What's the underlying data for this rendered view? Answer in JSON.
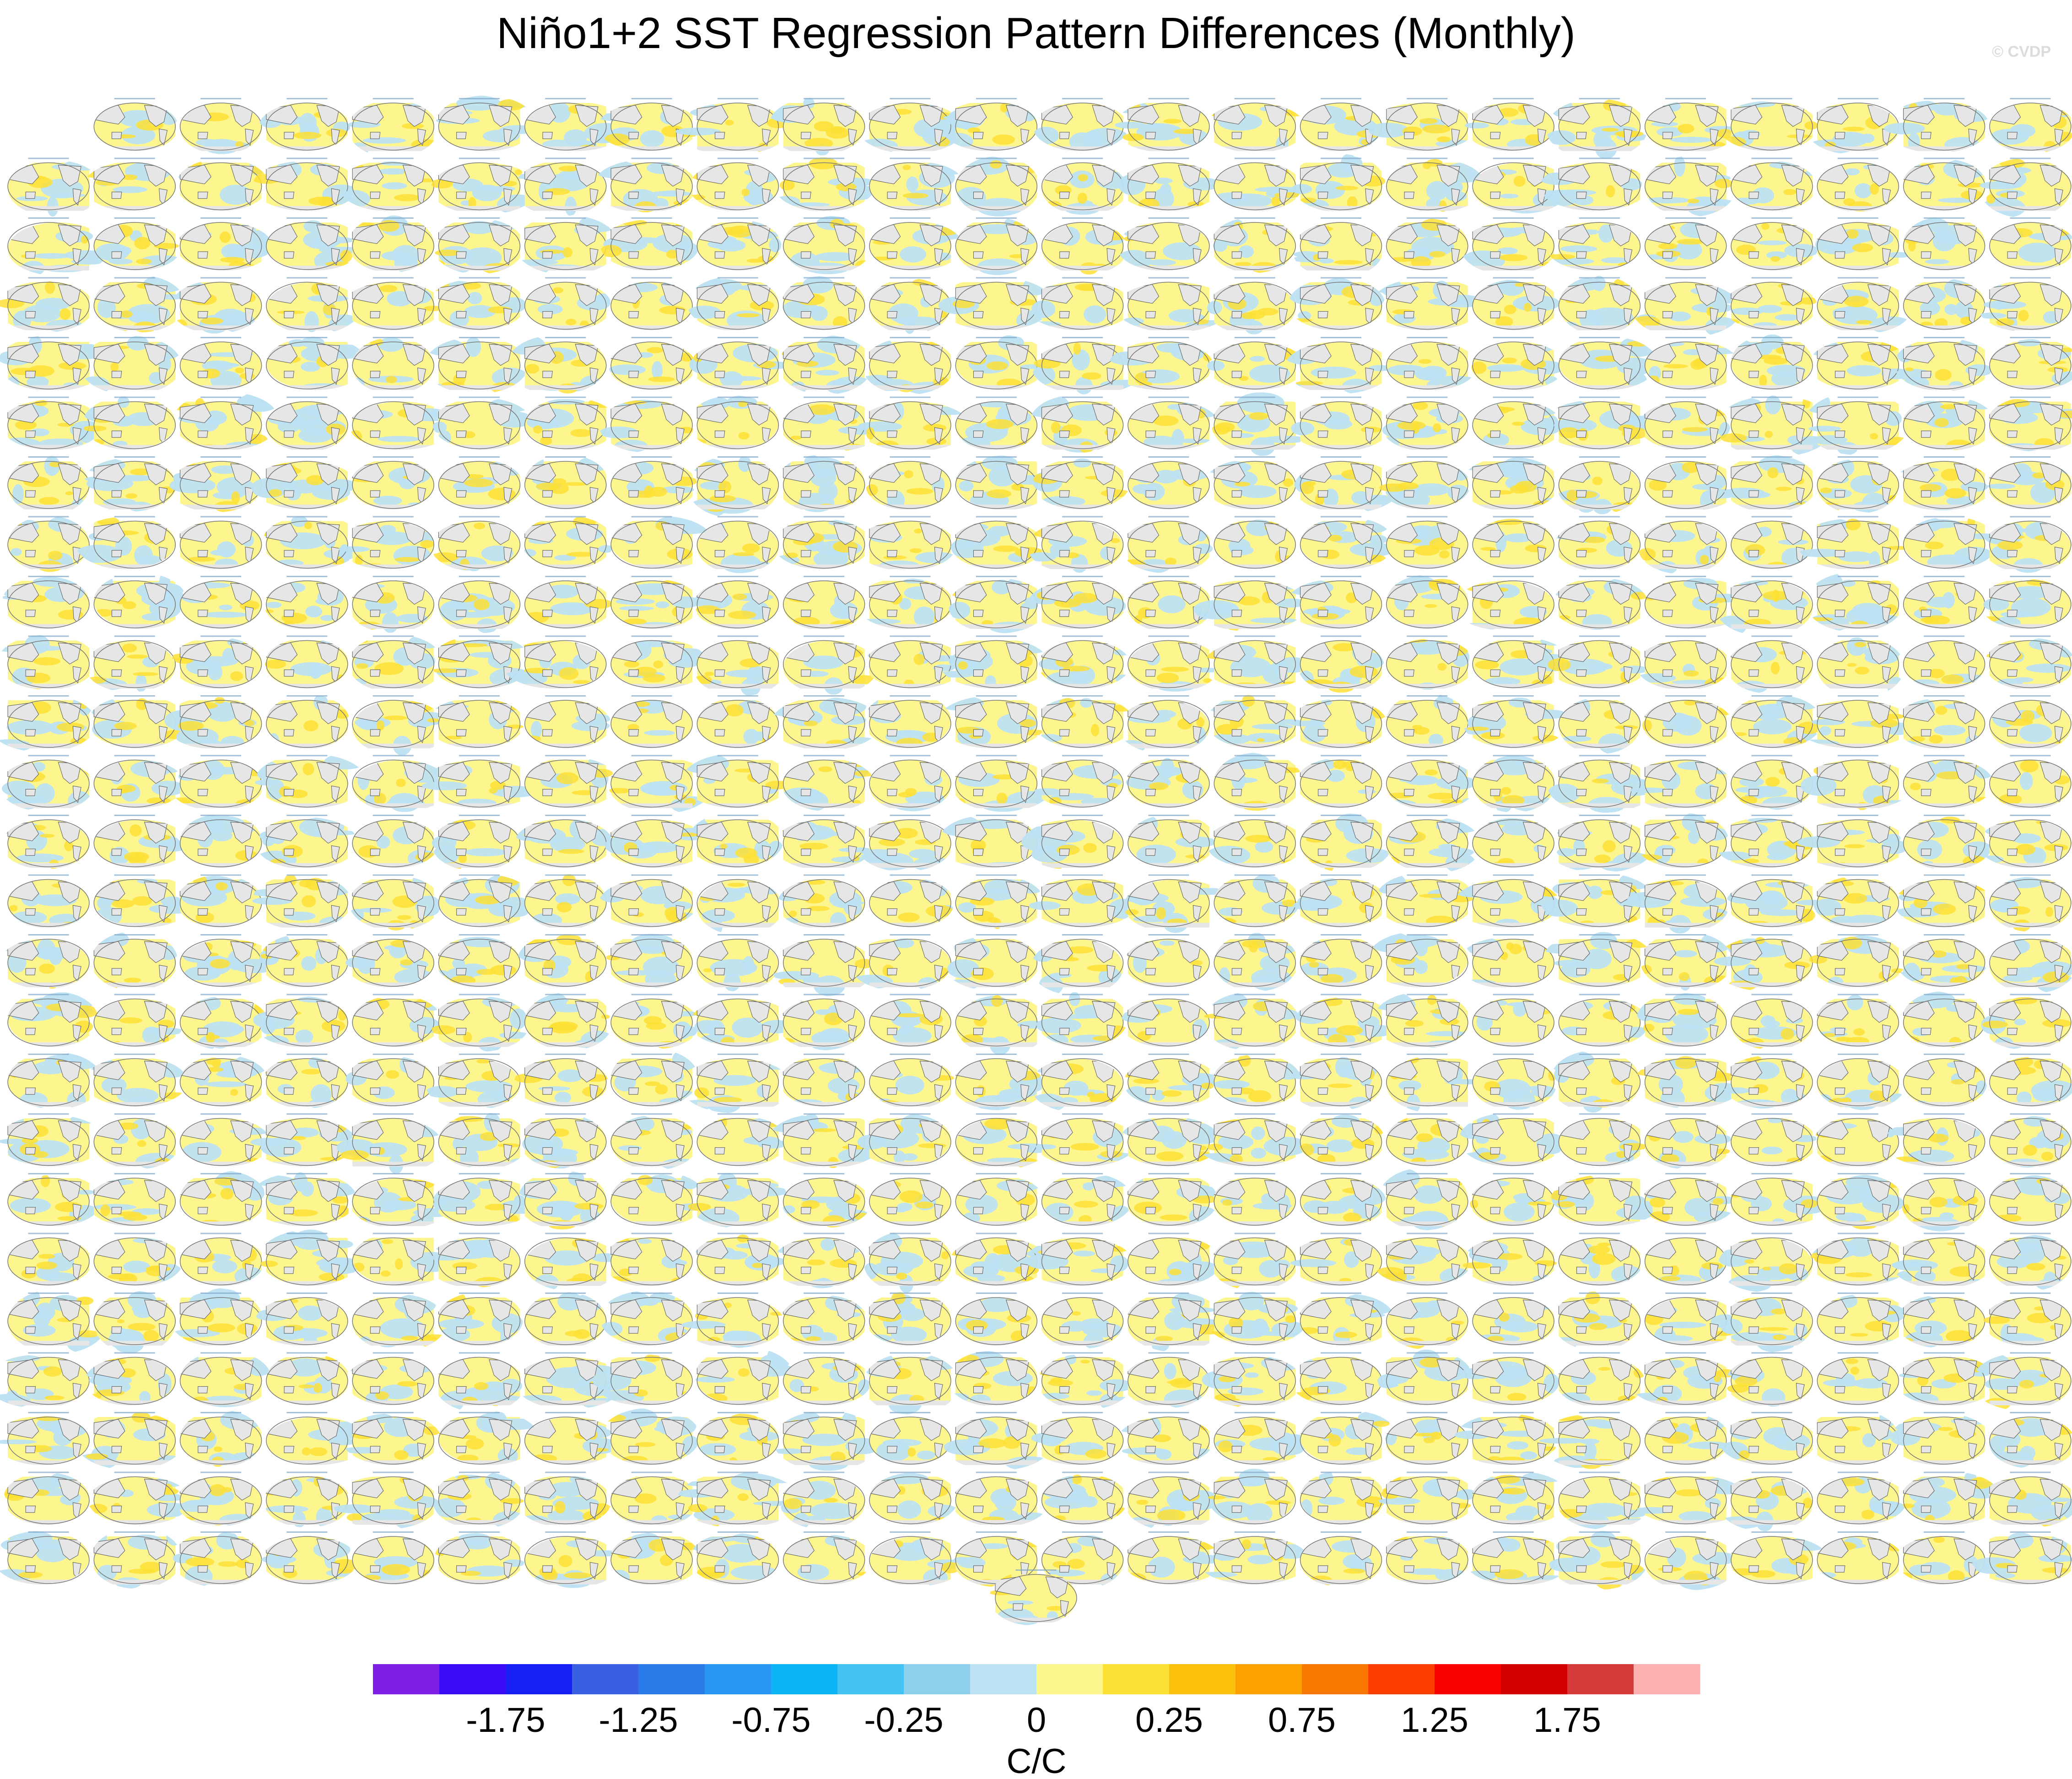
{
  "chart_data": {
    "type": "heatmap",
    "title": "Niño1+2 SST Regression Pattern Differences (Monthly)",
    "watermark": "© CVDP",
    "panel_grid": {
      "rows": 25,
      "columns": 24,
      "first_row_panels": 23,
      "extra_bottom_panels": 1,
      "panel_kind": "global map (Pacific-centered)"
    },
    "colorbar": {
      "unit_label": "C/C",
      "tick_labels": [
        "-1.75",
        "-1.25",
        "-0.75",
        "-0.25",
        "0",
        "0.25",
        "0.75",
        "1.25",
        "1.75"
      ],
      "colors": [
        "#7f1fe6",
        "#3a0bf5",
        "#1620f5",
        "#3a5fe0",
        "#2a7ae8",
        "#2896f2",
        "#0ab4f5",
        "#42c3f2",
        "#8ecfeb",
        "#bde2f3",
        "#fdf68f",
        "#fde035",
        "#fcc10c",
        "#fca100",
        "#fb7800",
        "#fb3e00",
        "#f90000",
        "#d20000",
        "#d63b3b",
        "#ffb0b0"
      ]
    },
    "land_color": "#e6e6e6",
    "dominant_colors": [
      "#fdf68f",
      "#bde2f3",
      "#fde035"
    ]
  }
}
